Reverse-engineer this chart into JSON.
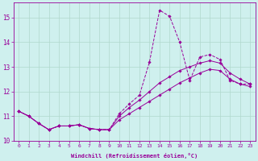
{
  "xlabel": "Windchill (Refroidissement éolien,°C)",
  "bg_color": "#cff0ee",
  "line_color": "#990099",
  "grid_color": "#b0d8cc",
  "xlim": [
    -0.5,
    23.5
  ],
  "ylim": [
    10,
    15.6
  ],
  "yticks": [
    10,
    11,
    12,
    13,
    14,
    15
  ],
  "xticks": [
    0,
    1,
    2,
    3,
    4,
    5,
    6,
    7,
    8,
    9,
    10,
    11,
    12,
    13,
    14,
    15,
    16,
    17,
    18,
    19,
    20,
    21,
    22,
    23
  ],
  "series1_dashed": {
    "x": [
      0,
      1,
      2,
      3,
      4,
      5,
      6,
      7,
      8,
      9,
      10,
      11,
      12,
      13,
      14,
      15,
      16,
      17,
      18,
      19,
      20,
      21,
      22,
      23
    ],
    "y": [
      11.2,
      11.0,
      10.7,
      10.45,
      10.6,
      10.6,
      10.65,
      10.5,
      10.45,
      10.45,
      11.1,
      11.5,
      11.85,
      13.2,
      15.3,
      15.05,
      14.0,
      12.45,
      13.4,
      13.5,
      13.3,
      12.45,
      12.3,
      12.3
    ]
  },
  "series2_solid": {
    "x": [
      0,
      1,
      2,
      3,
      4,
      5,
      6,
      7,
      8,
      9,
      10,
      11,
      12,
      13,
      14,
      15,
      16,
      17,
      18,
      19,
      20,
      21,
      22,
      23
    ],
    "y": [
      11.2,
      11.0,
      10.7,
      10.45,
      10.6,
      10.6,
      10.65,
      10.5,
      10.45,
      10.45,
      11.0,
      11.35,
      11.65,
      12.0,
      12.35,
      12.6,
      12.85,
      13.0,
      13.15,
      13.25,
      13.15,
      12.75,
      12.5,
      12.3
    ]
  },
  "series3_solid": {
    "x": [
      0,
      1,
      2,
      3,
      4,
      5,
      6,
      7,
      8,
      9,
      10,
      11,
      12,
      13,
      14,
      15,
      16,
      17,
      18,
      19,
      20,
      21,
      22,
      23
    ],
    "y": [
      11.2,
      11.0,
      10.7,
      10.45,
      10.6,
      10.6,
      10.65,
      10.5,
      10.45,
      10.45,
      10.85,
      11.1,
      11.35,
      11.6,
      11.85,
      12.1,
      12.35,
      12.55,
      12.75,
      12.9,
      12.85,
      12.5,
      12.3,
      12.2
    ]
  }
}
